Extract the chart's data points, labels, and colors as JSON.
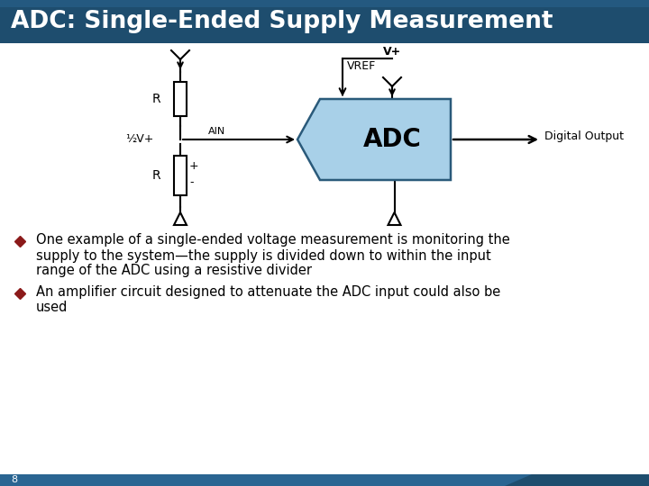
{
  "title": "ADC: Single-Ended Supply Measurement",
  "title_bg_dark": "#1e4d6e",
  "title_bg_mid": "#2a6592",
  "title_text_color": "#ffffff",
  "slide_bg": "#ffffff",
  "bullet1_line1": "One example of a single-ended voltage measurement is monitoring the",
  "bullet1_line2": "supply to the system—the supply is divided down to within the input",
  "bullet1_line3": "range of the ADC using a resistive divider",
  "bullet2_line1": "An amplifier circuit designed to attenuate the ADC input could also be",
  "bullet2_line2": "used",
  "bullet_color": "#8b1a1a",
  "text_color": "#000000",
  "page_number": "8",
  "adc_fill": "#a8d0e8",
  "adc_edge": "#2a5a7a",
  "adc_text": "ADC",
  "footer_color1": "#2a6592",
  "footer_color2": "#1e4d6e",
  "circuit_line_color": "#000000",
  "circuit_lw": 1.5
}
